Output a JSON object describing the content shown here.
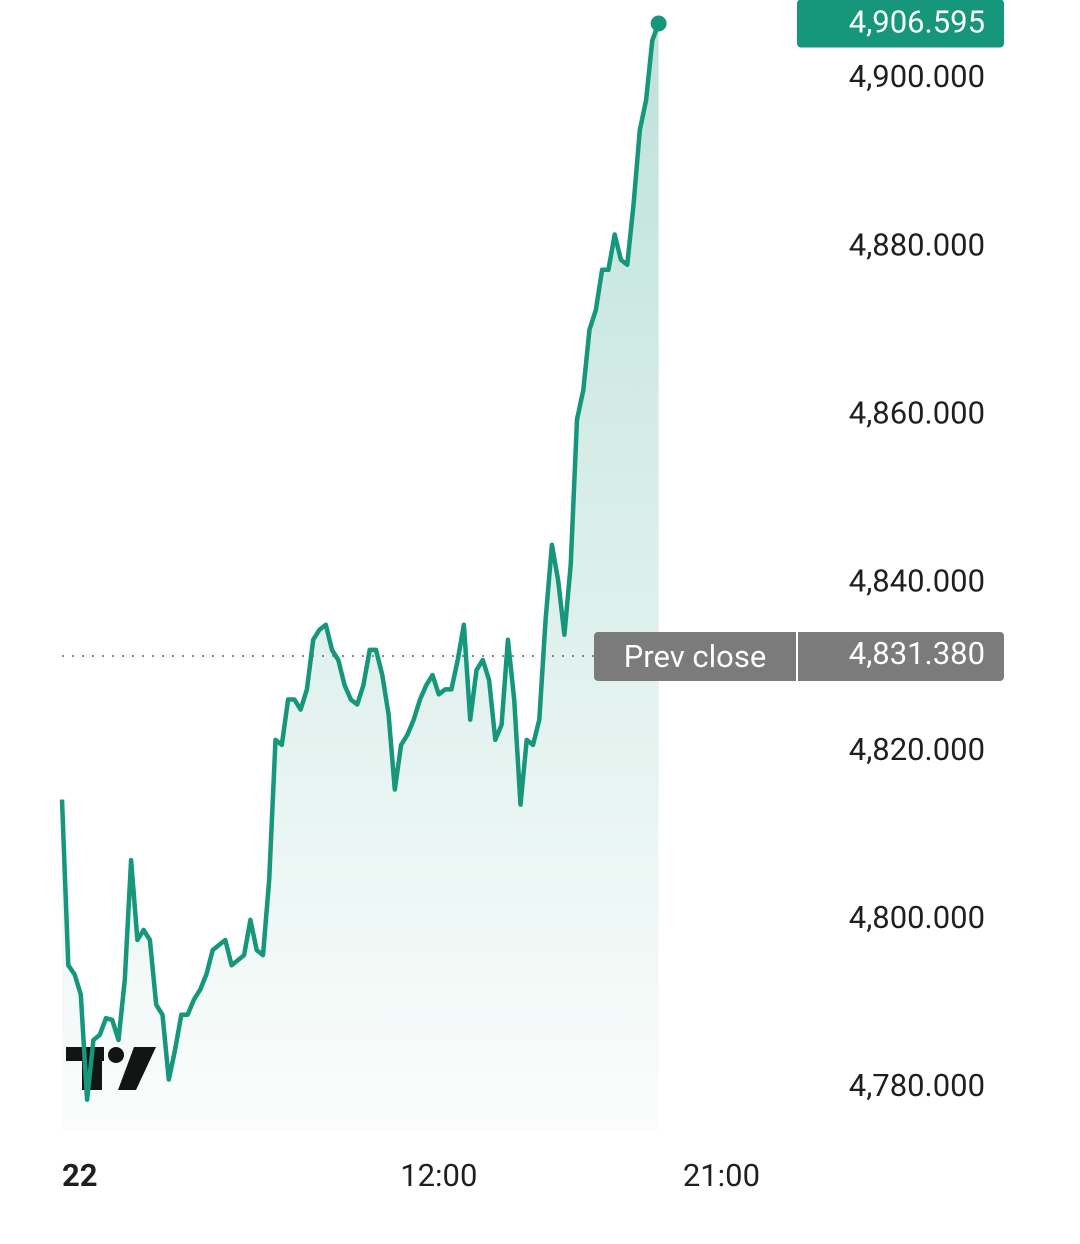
{
  "chart_data": {
    "type": "line",
    "x": [
      0,
      0.2,
      0.4,
      0.6,
      0.8,
      1.0,
      1.2,
      1.4,
      1.6,
      1.8,
      2.0,
      2.2,
      2.4,
      2.6,
      2.8,
      3.0,
      3.2,
      3.4,
      3.6,
      3.8,
      4.0,
      4.2,
      4.4,
      4.6,
      4.8,
      5.0,
      5.2,
      5.4,
      5.6,
      5.8,
      6.0,
      6.2,
      6.4,
      6.6,
      6.8,
      7.0,
      7.2,
      7.4,
      7.6,
      7.8,
      8.0,
      8.2,
      8.4,
      8.6,
      8.8,
      9.0,
      9.2,
      9.4,
      9.6,
      9.8,
      10.0,
      10.2,
      10.4,
      10.6,
      10.8,
      11.0,
      11.2,
      11.4,
      11.6,
      11.8,
      12.0,
      12.2,
      12.4,
      12.6,
      12.8,
      13.0,
      13.2,
      13.4,
      13.6,
      13.8,
      14.0,
      14.2,
      14.4,
      14.6,
      14.8,
      15.0,
      15.2,
      15.4,
      15.6,
      15.8,
      16.0,
      16.2,
      16.4,
      16.6,
      16.8,
      17.0,
      17.2,
      17.4,
      17.6,
      17.8,
      18.0,
      18.2,
      18.4,
      18.6,
      18.8,
      19.0
    ],
    "series": [
      {
        "color": "#16967a",
        "values": [
          4814.3,
          4794.6,
          4793.5,
          4791.1,
          4778.6,
          4785.7,
          4786.3,
          4788.3,
          4788.1,
          4785.7,
          4792.9,
          4807.1,
          4797.6,
          4798.8,
          4797.6,
          4789.9,
          4788.7,
          4781.0,
          4784.5,
          4788.7,
          4788.7,
          4790.5,
          4791.7,
          4793.5,
          4796.4,
          4797.0,
          4797.6,
          4794.6,
          4795.2,
          4795.8,
          4800.0,
          4796.4,
          4795.8,
          4804.8,
          4821.4,
          4820.8,
          4826.2,
          4826.2,
          4825.0,
          4827.4,
          4833.3,
          4834.5,
          4835.1,
          4832.1,
          4830.9,
          4827.9,
          4826.2,
          4825.6,
          4827.9,
          4832.1,
          4832.1,
          4829.1,
          4824.4,
          4815.5,
          4820.8,
          4822.0,
          4823.8,
          4826.2,
          4827.9,
          4829.1,
          4826.8,
          4827.4,
          4827.4,
          4830.9,
          4835.1,
          4823.8,
          4829.7,
          4830.9,
          4828.5,
          4821.4,
          4823.2,
          4833.3,
          4826.2,
          4813.7,
          4821.4,
          4820.8,
          4823.8,
          4835.7,
          4844.6,
          4840.4,
          4833.9,
          4842.2,
          4859.5,
          4863.0,
          4870.2,
          4872.5,
          4877.3,
          4877.3,
          4881.5,
          4878.5,
          4877.9,
          4885.0,
          4893.9,
          4897.5,
          4904.6,
          4906.595
        ]
      }
    ],
    "last_price": {
      "value": 4906.595,
      "label": "4,906.595"
    },
    "prev_close": {
      "label": "Prev close",
      "value": 4831.38,
      "value_label": "4,831.380"
    },
    "xlim": [
      0,
      23.2
    ],
    "xticks": [
      {
        "value": 0,
        "label": "22"
      },
      {
        "value": 12,
        "label": "12:00"
      },
      {
        "value": 21,
        "label": "21:00"
      }
    ],
    "ylim": [
      4775,
      4907
    ],
    "yticks": [
      {
        "value": 4780,
        "label": "4,780.000"
      },
      {
        "value": 4800,
        "label": "4,800.000"
      },
      {
        "value": 4820,
        "label": "4,820.000"
      },
      {
        "value": 4840,
        "label": "4,840.000"
      },
      {
        "value": 4860,
        "label": "4,860.000"
      },
      {
        "value": 4880,
        "label": "4,880.000"
      },
      {
        "value": 4900,
        "label": "4,900.000"
      }
    ]
  }
}
